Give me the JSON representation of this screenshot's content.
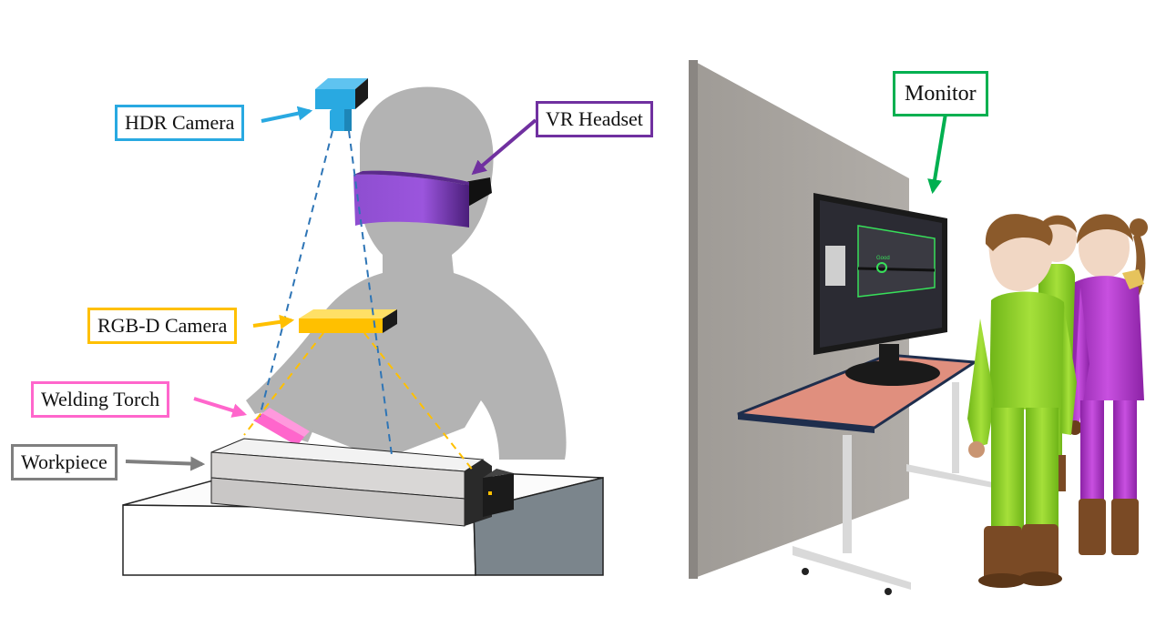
{
  "labels": {
    "hdr_camera": "HDR Camera",
    "vr_headset": "VR Headset",
    "rgbd_camera": "RGB-D Camera",
    "welding_torch": "Welding Torch",
    "workpiece": "Workpiece",
    "monitor": "Monitor"
  },
  "colors": {
    "hdr_camera": "#29a9e1",
    "vr_headset": "#7030a0",
    "rgbd_camera": "#ffc000",
    "welding_torch": "#ff66cc",
    "workpiece": "#7f7f7f",
    "monitor": "#00b050",
    "dashed_blue": "#2e75b6",
    "dashed_yellow": "#ffc000",
    "silhouette": "#b3b3b3",
    "wall": "#a7a39e",
    "table_top": "#e08f7e",
    "suit_green": "#8ed12a",
    "suit_purple": "#b035c8"
  },
  "monitor_screen": {
    "status": "Good"
  }
}
